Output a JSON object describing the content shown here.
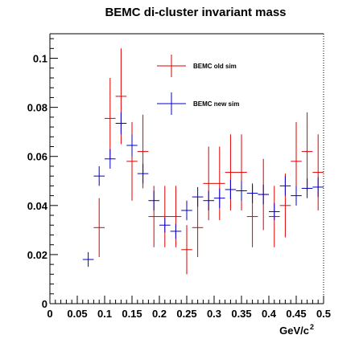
{
  "chart_data": {
    "type": "scatter",
    "title": "BEMC di-cluster invariant mass",
    "xlabel": "GeV/c",
    "xlabel_superscript": "2",
    "ylabel": "",
    "xlim": [
      0,
      0.5
    ],
    "ylim": [
      0,
      0.11
    ],
    "x_ticks": [
      "0",
      "0.05",
      "0.1",
      "0.15",
      "0.2",
      "0.25",
      "0.3",
      "0.35",
      "0.4",
      "0.45",
      "0.5"
    ],
    "y_ticks": [
      "0",
      "0.02",
      "0.04",
      "0.06",
      "0.08",
      "0.1"
    ],
    "legend_position": "top-center",
    "series": [
      {
        "name": "BEMC old sim",
        "color": "#dd0000",
        "points": [
          {
            "x": 0.09,
            "y": 0.031,
            "ylo": 0.019,
            "yhi": 0.043
          },
          {
            "x": 0.11,
            "y": 0.0755,
            "ylo": 0.059,
            "yhi": 0.092
          },
          {
            "x": 0.13,
            "y": 0.0845,
            "ylo": 0.065,
            "yhi": 0.104
          },
          {
            "x": 0.15,
            "y": 0.058,
            "ylo": 0.042,
            "yhi": 0.074
          },
          {
            "x": 0.17,
            "y": 0.062,
            "ylo": 0.047,
            "yhi": 0.077
          },
          {
            "x": 0.19,
            "y": 0.0355,
            "ylo": 0.023,
            "yhi": 0.048
          },
          {
            "x": 0.21,
            "y": 0.0355,
            "ylo": 0.023,
            "yhi": 0.048
          },
          {
            "x": 0.23,
            "y": 0.0355,
            "ylo": 0.023,
            "yhi": 0.048
          },
          {
            "x": 0.25,
            "y": 0.022,
            "ylo": 0.012,
            "yhi": 0.032
          },
          {
            "x": 0.27,
            "y": 0.031,
            "ylo": 0.019,
            "yhi": 0.043
          },
          {
            "x": 0.29,
            "y": 0.049,
            "ylo": 0.034,
            "yhi": 0.064
          },
          {
            "x": 0.31,
            "y": 0.049,
            "ylo": 0.034,
            "yhi": 0.064
          },
          {
            "x": 0.33,
            "y": 0.0535,
            "ylo": 0.038,
            "yhi": 0.069
          },
          {
            "x": 0.35,
            "y": 0.0535,
            "ylo": 0.038,
            "yhi": 0.069
          },
          {
            "x": 0.37,
            "y": 0.0355,
            "ylo": 0.023,
            "yhi": 0.048
          },
          {
            "x": 0.39,
            "y": 0.0445,
            "ylo": 0.03,
            "yhi": 0.059
          },
          {
            "x": 0.41,
            "y": 0.0355,
            "ylo": 0.023,
            "yhi": 0.048
          },
          {
            "x": 0.43,
            "y": 0.04,
            "ylo": 0.027,
            "yhi": 0.053
          },
          {
            "x": 0.45,
            "y": 0.058,
            "ylo": 0.042,
            "yhi": 0.074
          },
          {
            "x": 0.47,
            "y": 0.062,
            "ylo": 0.046,
            "yhi": 0.078
          },
          {
            "x": 0.49,
            "y": 0.0535,
            "ylo": 0.038,
            "yhi": 0.069
          }
        ]
      },
      {
        "name": "BEMC new sim",
        "color": "#0000cc",
        "points": [
          {
            "x": 0.07,
            "y": 0.018,
            "ylo": 0.015,
            "yhi": 0.021
          },
          {
            "x": 0.09,
            "y": 0.052,
            "ylo": 0.048,
            "yhi": 0.056
          },
          {
            "x": 0.11,
            "y": 0.059,
            "ylo": 0.055,
            "yhi": 0.063
          },
          {
            "x": 0.13,
            "y": 0.0735,
            "ylo": 0.069,
            "yhi": 0.078
          },
          {
            "x": 0.15,
            "y": 0.0645,
            "ylo": 0.06,
            "yhi": 0.069
          },
          {
            "x": 0.17,
            "y": 0.053,
            "ylo": 0.049,
            "yhi": 0.057
          },
          {
            "x": 0.19,
            "y": 0.042,
            "ylo": 0.038,
            "yhi": 0.046
          },
          {
            "x": 0.21,
            "y": 0.032,
            "ylo": 0.029,
            "yhi": 0.035
          },
          {
            "x": 0.23,
            "y": 0.0295,
            "ylo": 0.0265,
            "yhi": 0.0325
          },
          {
            "x": 0.25,
            "y": 0.038,
            "ylo": 0.034,
            "yhi": 0.042
          },
          {
            "x": 0.27,
            "y": 0.0435,
            "ylo": 0.0395,
            "yhi": 0.0475
          },
          {
            "x": 0.29,
            "y": 0.042,
            "ylo": 0.038,
            "yhi": 0.046
          },
          {
            "x": 0.31,
            "y": 0.043,
            "ylo": 0.039,
            "yhi": 0.047
          },
          {
            "x": 0.33,
            "y": 0.0465,
            "ylo": 0.0425,
            "yhi": 0.0505
          },
          {
            "x": 0.35,
            "y": 0.046,
            "ylo": 0.042,
            "yhi": 0.05
          },
          {
            "x": 0.37,
            "y": 0.045,
            "ylo": 0.041,
            "yhi": 0.049
          },
          {
            "x": 0.39,
            "y": 0.0445,
            "ylo": 0.0405,
            "yhi": 0.0485
          },
          {
            "x": 0.41,
            "y": 0.0375,
            "ylo": 0.034,
            "yhi": 0.041
          },
          {
            "x": 0.43,
            "y": 0.048,
            "ylo": 0.044,
            "yhi": 0.052
          },
          {
            "x": 0.45,
            "y": 0.044,
            "ylo": 0.04,
            "yhi": 0.048
          },
          {
            "x": 0.47,
            "y": 0.047,
            "ylo": 0.043,
            "yhi": 0.051
          },
          {
            "x": 0.49,
            "y": 0.0475,
            "ylo": 0.0435,
            "yhi": 0.0515
          }
        ]
      }
    ]
  }
}
